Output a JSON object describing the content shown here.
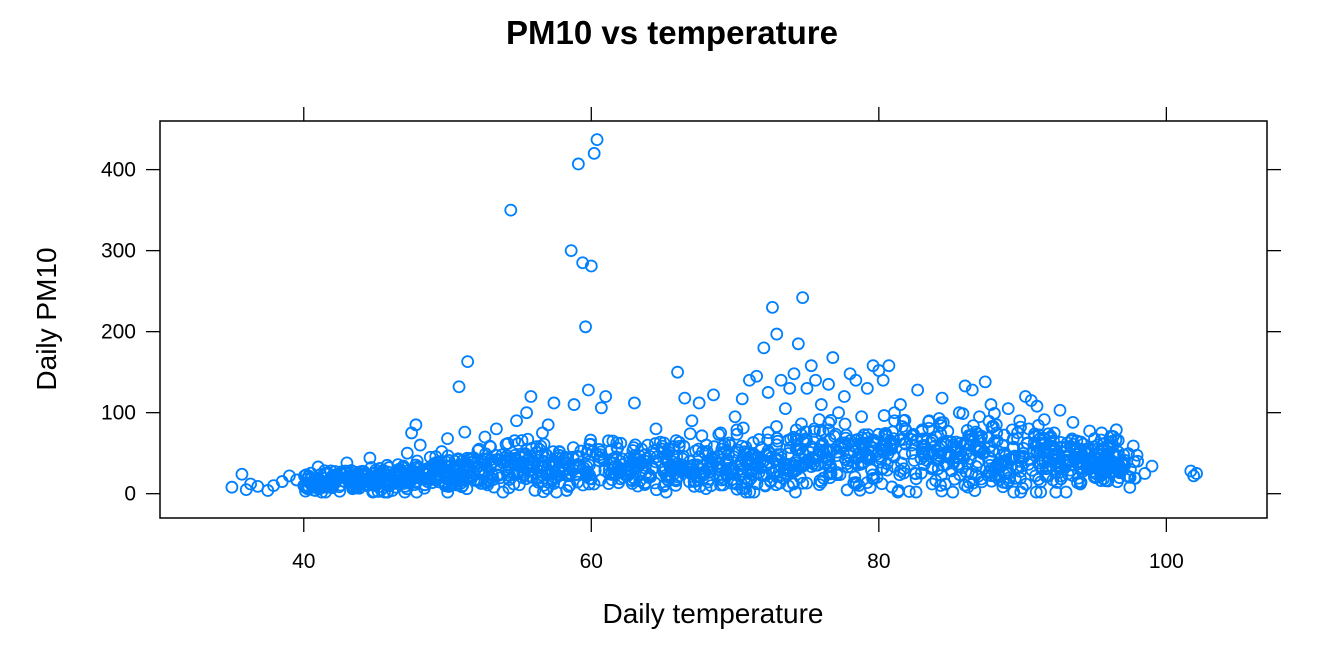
{
  "chart_data": {
    "type": "scatter",
    "title": "PM10 vs temperature",
    "xlabel": "Daily temperature",
    "ylabel": "Daily PM10",
    "xlim": [
      30,
      107
    ],
    "ylim": [
      -30,
      460
    ],
    "x_ticks": [
      40,
      60,
      80,
      100
    ],
    "y_ticks": [
      0,
      100,
      200,
      300,
      400
    ],
    "grid": false,
    "marker": "open-circle",
    "color": "#0080FF",
    "series": [
      {
        "points": [
          [
            35,
            8
          ],
          [
            35.7,
            24
          ],
          [
            36,
            5
          ],
          [
            36.3,
            12
          ],
          [
            36.8,
            9
          ],
          [
            37.5,
            4
          ],
          [
            37.9,
            10
          ],
          [
            38.5,
            15
          ],
          [
            39,
            22
          ],
          [
            39.5,
            17
          ],
          [
            40,
            10
          ],
          [
            40.3,
            6
          ],
          [
            40.8,
            4
          ],
          [
            41,
            33
          ],
          [
            41.4,
            12
          ],
          [
            41.8,
            8
          ],
          [
            42.2,
            20
          ],
          [
            42.5,
            3
          ],
          [
            43,
            38
          ],
          [
            43.3,
            15
          ],
          [
            43.7,
            7
          ],
          [
            44.2,
            27
          ],
          [
            44.6,
            44
          ],
          [
            45,
            10
          ],
          [
            45.3,
            23
          ],
          [
            45.8,
            35
          ],
          [
            46.2,
            18
          ],
          [
            46.7,
            12
          ],
          [
            47.2,
            50
          ],
          [
            47.5,
            75
          ],
          [
            47.8,
            85
          ],
          [
            48.1,
            60
          ],
          [
            48.5,
            30
          ],
          [
            48.8,
            45
          ],
          [
            49.3,
            18
          ],
          [
            49.6,
            52
          ],
          [
            50,
            68
          ],
          [
            50.5,
            40
          ],
          [
            50.8,
            132
          ],
          [
            51.2,
            76
          ],
          [
            51.4,
            163
          ],
          [
            51.8,
            25
          ],
          [
            52.2,
            55
          ],
          [
            52.6,
            70
          ],
          [
            53,
            35
          ],
          [
            53.4,
            80
          ],
          [
            53.8,
            48
          ],
          [
            54.2,
            62
          ],
          [
            54.4,
            350
          ],
          [
            54.8,
            90
          ],
          [
            55.2,
            20
          ],
          [
            55.5,
            100
          ],
          [
            55.8,
            120
          ],
          [
            56.2,
            58
          ],
          [
            56.6,
            75
          ],
          [
            57,
            85
          ],
          [
            57.4,
            112
          ],
          [
            57.8,
            30
          ],
          [
            58.2,
            45
          ],
          [
            58.6,
            300
          ],
          [
            58.8,
            110
          ],
          [
            59.1,
            407
          ],
          [
            59.4,
            285
          ],
          [
            59.6,
            206
          ],
          [
            59.8,
            128
          ],
          [
            60,
            281
          ],
          [
            60.2,
            420
          ],
          [
            60.4,
            437
          ],
          [
            60.7,
            106
          ],
          [
            61,
            120
          ],
          [
            61.5,
            65
          ],
          [
            62,
            40
          ],
          [
            62.5,
            30
          ],
          [
            63,
            112
          ],
          [
            63.5,
            55
          ],
          [
            64,
            20
          ],
          [
            64.5,
            80
          ],
          [
            65,
            45
          ],
          [
            65.5,
            35
          ],
          [
            66,
            150
          ],
          [
            66.5,
            118
          ],
          [
            67,
            90
          ],
          [
            67.5,
            112
          ],
          [
            68,
            60
          ],
          [
            68.5,
            122
          ],
          [
            69,
            75
          ],
          [
            69.5,
            40
          ],
          [
            70,
            95
          ],
          [
            70.5,
            117
          ],
          [
            71,
            140
          ],
          [
            71.5,
            145
          ],
          [
            72,
            180
          ],
          [
            72.3,
            125
          ],
          [
            72.6,
            230
          ],
          [
            72.9,
            197
          ],
          [
            73.2,
            140
          ],
          [
            73.5,
            105
          ],
          [
            73.8,
            130
          ],
          [
            74.1,
            148
          ],
          [
            74.4,
            185
          ],
          [
            74.7,
            242
          ],
          [
            75,
            130
          ],
          [
            75.3,
            158
          ],
          [
            75.6,
            140
          ],
          [
            76,
            110
          ],
          [
            76.5,
            135
          ],
          [
            76.8,
            168
          ],
          [
            77.2,
            100
          ],
          [
            77.6,
            120
          ],
          [
            78,
            148
          ],
          [
            78.4,
            140
          ],
          [
            78.8,
            95
          ],
          [
            79.2,
            130
          ],
          [
            79.6,
            158
          ],
          [
            80,
            152
          ],
          [
            80.3,
            140
          ],
          [
            80.7,
            158
          ],
          [
            81.1,
            90
          ],
          [
            81.5,
            110
          ],
          [
            81.9,
            78
          ],
          [
            82.3,
            60
          ],
          [
            82.7,
            128
          ],
          [
            83.1,
            55
          ],
          [
            83.5,
            90
          ],
          [
            84,
            70
          ],
          [
            84.4,
            118
          ],
          [
            84.8,
            45
          ],
          [
            85.2,
            60
          ],
          [
            85.6,
            100
          ],
          [
            86,
            133
          ],
          [
            86.5,
            128
          ],
          [
            87,
            95
          ],
          [
            87.4,
            138
          ],
          [
            87.8,
            110
          ],
          [
            88.2,
            75
          ],
          [
            88.6,
            60
          ],
          [
            89,
            105
          ],
          [
            89.4,
            45
          ],
          [
            89.8,
            90
          ],
          [
            90.2,
            120
          ],
          [
            90.6,
            115
          ],
          [
            91,
            108
          ],
          [
            91.4,
            60
          ],
          [
            91.8,
            40
          ],
          [
            92.2,
            75
          ],
          [
            92.6,
            103
          ],
          [
            93,
            35
          ],
          [
            93.5,
            88
          ],
          [
            94,
            55
          ],
          [
            94.5,
            30
          ],
          [
            95,
            68
          ],
          [
            95.5,
            75
          ],
          [
            96,
            60
          ],
          [
            96.5,
            45
          ],
          [
            97,
            38
          ],
          [
            97.5,
            30
          ],
          [
            98,
            40
          ],
          [
            98.5,
            25
          ],
          [
            99,
            34
          ],
          [
            101.7,
            28
          ],
          [
            101.9,
            22
          ],
          [
            102.1,
            25
          ]
        ]
      }
    ]
  }
}
